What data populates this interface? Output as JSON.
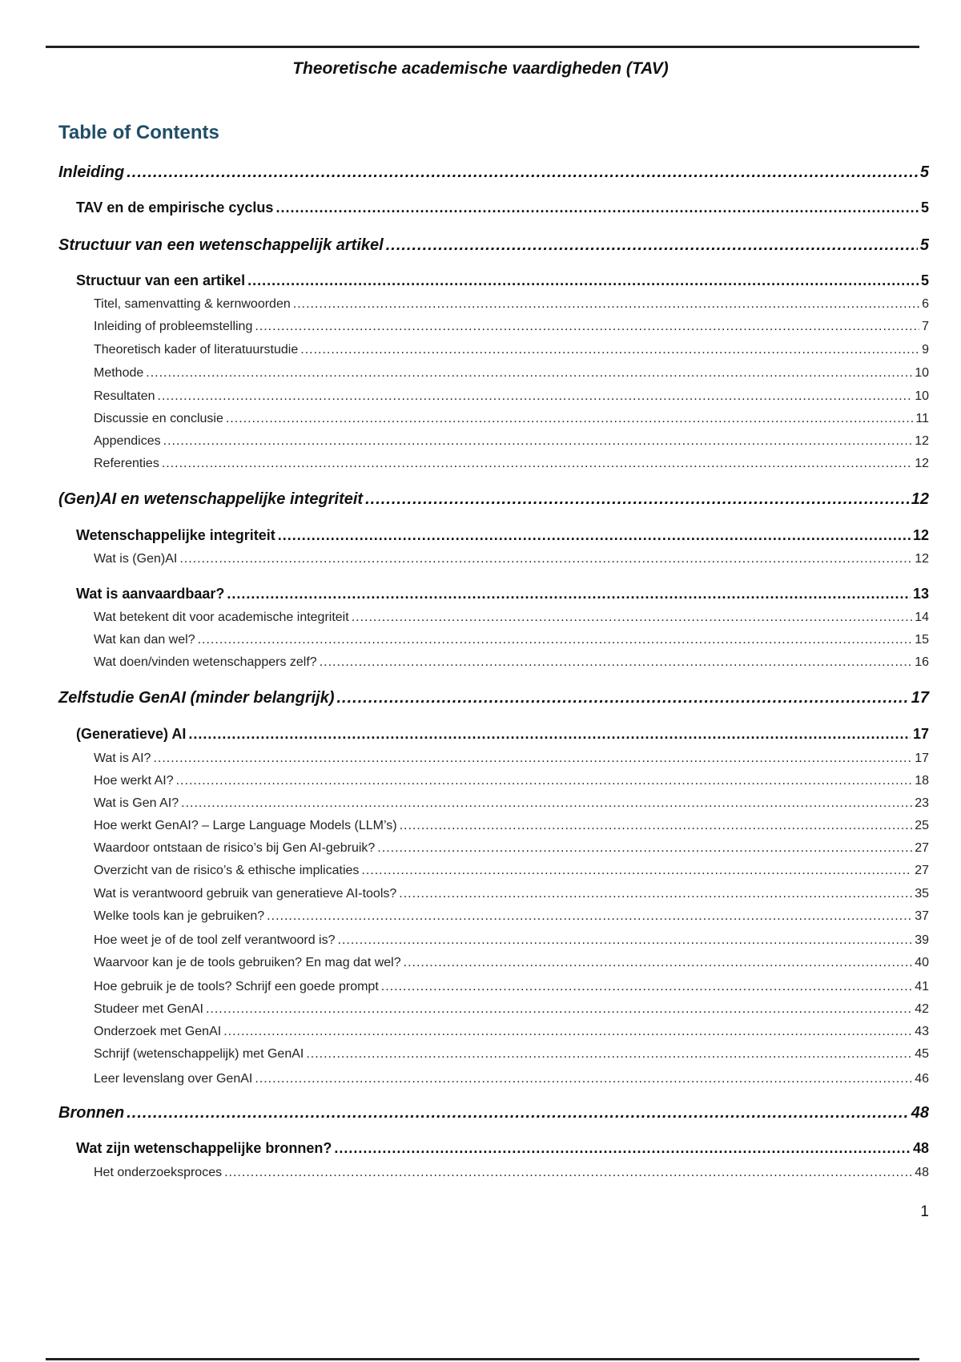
{
  "header": {
    "title": "Theoretische academische vaardigheden (TAV)"
  },
  "toc": {
    "title": "Table of Contents",
    "entries": [
      {
        "level": 1,
        "label": "Inleiding",
        "page": "5"
      },
      {
        "level": 2,
        "label": "TAV en de empirische cyclus",
        "page": "5"
      },
      {
        "level": 1,
        "label": "Structuur van een wetenschappelijk artikel",
        "page": "5"
      },
      {
        "level": 2,
        "label": "Structuur van een artikel",
        "page": "5"
      },
      {
        "level": 3,
        "label": "Titel, samenvatting & kernwoorden",
        "page": "6"
      },
      {
        "level": 3,
        "label": "Inleiding of probleemstelling",
        "page": "7"
      },
      {
        "level": 3,
        "label": "Theoretisch kader of literatuurstudie",
        "page": "9"
      },
      {
        "level": 3,
        "label": "Methode",
        "page": "10"
      },
      {
        "level": 3,
        "label": "Resultaten",
        "page": "10"
      },
      {
        "level": 3,
        "label": "Discussie en conclusie",
        "page": "11"
      },
      {
        "level": 3,
        "label": "Appendices",
        "page": "12"
      },
      {
        "level": 3,
        "label": "Referenties",
        "page": "12"
      },
      {
        "level": 1,
        "label": "(Gen)AI en wetenschappelijke integriteit",
        "page": "12"
      },
      {
        "level": 2,
        "label": "Wetenschappelijke integriteit",
        "page": "12"
      },
      {
        "level": 3,
        "label": "Wat is (Gen)AI",
        "page": "12"
      },
      {
        "level": 2,
        "label": "Wat is aanvaardbaar?",
        "page": "13"
      },
      {
        "level": 3,
        "label": "Wat betekent dit voor academische integriteit",
        "page": "14"
      },
      {
        "level": 3,
        "label": "Wat kan dan wel?",
        "page": "15"
      },
      {
        "level": 3,
        "label": "Wat doen/vinden wetenschappers zelf?",
        "page": "16"
      },
      {
        "level": 1,
        "label": "Zelfstudie GenAI (minder belangrijk)",
        "page": "17"
      },
      {
        "level": 2,
        "label": "(Generatieve) AI",
        "page": "17"
      },
      {
        "level": 3,
        "label": "Wat is AI?",
        "page": "17"
      },
      {
        "level": 3,
        "label": "Hoe werkt AI?",
        "page": "18"
      },
      {
        "level": 3,
        "label": "Wat is Gen AI?",
        "page": "23"
      },
      {
        "level": 3,
        "label": "Hoe werkt GenAI? – Large Language Models (LLM’s)",
        "page": "25"
      },
      {
        "level": 3,
        "label": "Waardoor ontstaan de risico’s bij Gen AI-gebruik?",
        "page": "27"
      },
      {
        "level": 3,
        "label": "Overzicht van de risico’s & ethische implicaties",
        "page": "27"
      },
      {
        "level": 3,
        "label": "Wat is verantwoord gebruik van generatieve AI-tools?",
        "page": "35"
      },
      {
        "level": 3,
        "label": "Welke tools kan je gebruiken?",
        "page": "37"
      },
      {
        "level": 3,
        "label": "Hoe weet je of de tool zelf verantwoord is?",
        "page": "39"
      },
      {
        "level": 3,
        "label": "Waarvoor kan je de tools gebruiken? En mag dat wel?",
        "page": "40"
      },
      {
        "level": 3,
        "label": "Hoe gebruik je de tools? Schrijf een goede prompt",
        "page": "41"
      },
      {
        "level": 3,
        "label": "Studeer met GenAI",
        "page": "42"
      },
      {
        "level": 3,
        "label": "Onderzoek met GenAI",
        "page": "43"
      },
      {
        "level": 3,
        "label": "Schrijf (wetenschappelijk) met GenAI",
        "page": "45"
      },
      {
        "level": 3,
        "label": "Leer levenslang over GenAI",
        "page": "46"
      },
      {
        "level": 1,
        "label": "Bronnen",
        "page": "48"
      },
      {
        "level": 2,
        "label": "Wat zijn wetenschappelijke bronnen?",
        "page": "48"
      },
      {
        "level": 3,
        "label": "Het onderzoeksproces",
        "page": "48"
      }
    ]
  },
  "footer": {
    "page_number": "1"
  },
  "colors": {
    "toc_title": "#1f4e66",
    "text": "#111111"
  }
}
